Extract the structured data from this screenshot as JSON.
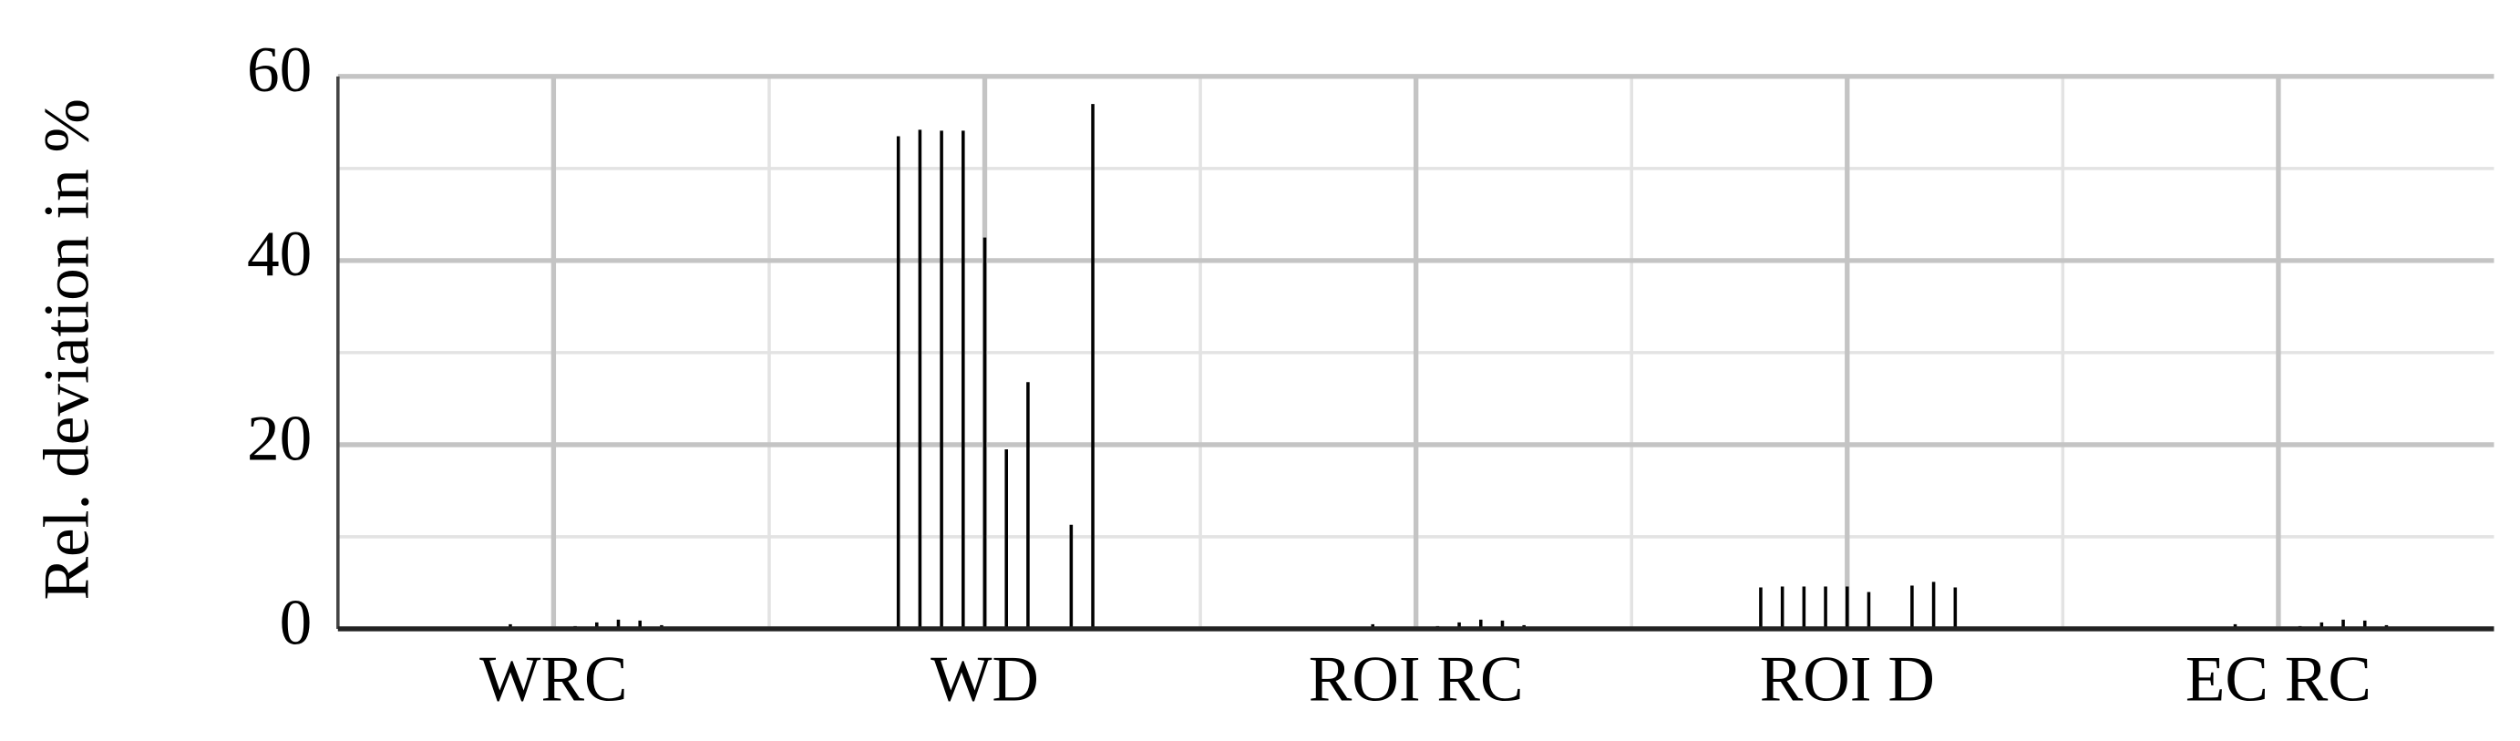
{
  "chart_data": {
    "type": "bar",
    "ylabel": "Rel. deviation in %",
    "categories": [
      "WRC",
      "WD",
      "ROI RC",
      "ROI D",
      "EC RC"
    ],
    "values": [
      [
        0,
        0,
        0.5,
        0,
        0,
        0.3,
        0.7,
        1.0,
        0.9,
        0.4
      ],
      [
        53.5,
        54.2,
        54.1,
        54.1,
        42.5,
        19.5,
        26.8,
        0,
        11.3,
        57
      ],
      [
        0,
        0,
        0.5,
        0,
        0,
        0.3,
        0.7,
        1.0,
        0.9,
        0.4
      ],
      [
        4.5,
        4.6,
        4.6,
        4.6,
        4.6,
        4.0,
        0,
        4.7,
        5.1,
        4.5
      ],
      [
        0,
        0,
        0.5,
        0,
        0,
        0.3,
        0.7,
        1.0,
        0.9,
        0.4
      ]
    ],
    "color": "#000000",
    "ylim": [
      0,
      60
    ],
    "yticks": [
      0,
      20,
      40,
      60
    ],
    "yminorticks": [
      10,
      30,
      50
    ],
    "grid": true
  }
}
